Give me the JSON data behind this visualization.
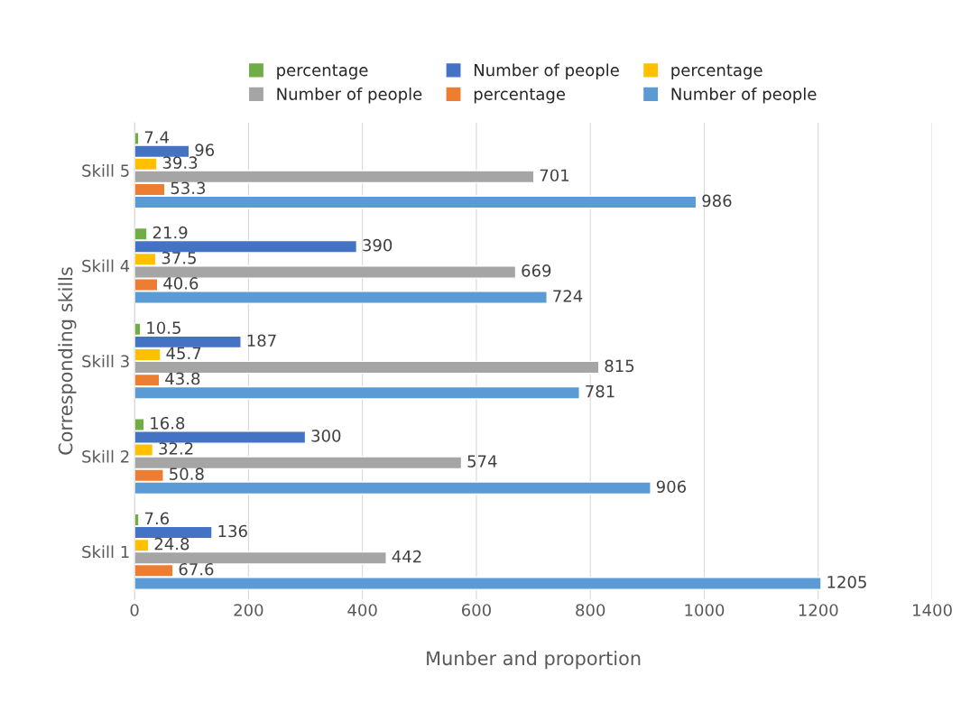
{
  "chart_data": {
    "type": "bar",
    "orientation": "horizontal",
    "xlabel": "Munber and proportion",
    "ylabel": "Corresponding skills",
    "categories": [
      "Skill 5",
      "Skill 4",
      "Skill 3",
      "Skill 2",
      "Skill 1"
    ],
    "series": [
      {
        "name": "percentage",
        "color": "#70ad47",
        "values": [
          7.4,
          21.9,
          10.5,
          16.8,
          7.6
        ]
      },
      {
        "name": "Number of people",
        "color": "#4472c4",
        "values": [
          96,
          390,
          187,
          300,
          136
        ]
      },
      {
        "name": "percentage",
        "color": "#ffc000",
        "values": [
          39.3,
          37.5,
          45.7,
          32.2,
          24.8
        ]
      },
      {
        "name": "Number of people",
        "color": "#a5a5a5",
        "values": [
          701,
          669,
          815,
          574,
          442
        ]
      },
      {
        "name": "percentage",
        "color": "#ed7d31",
        "values": [
          53.3,
          40.6,
          43.8,
          50.8,
          67.6
        ]
      },
      {
        "name": "Number of people",
        "color": "#5b9bd5",
        "values": [
          986,
          724,
          781,
          906,
          1205
        ]
      }
    ],
    "xlim": [
      0,
      1400
    ],
    "xticks": [
      0,
      200,
      400,
      600,
      800,
      1000,
      1200,
      1400
    ],
    "grid": "x",
    "legend": "top",
    "data_labels": true
  }
}
